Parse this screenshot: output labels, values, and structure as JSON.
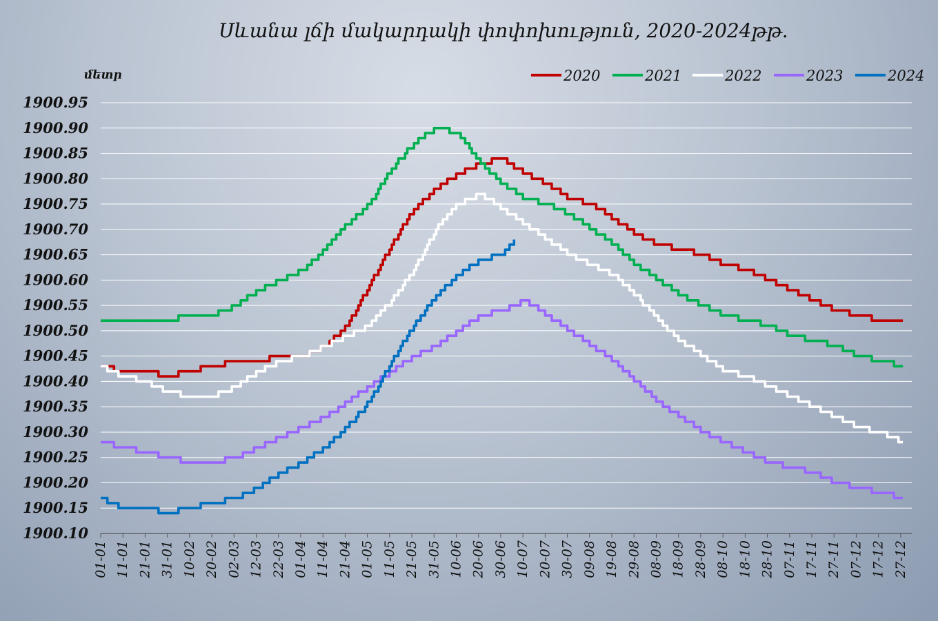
{
  "chart_data": {
    "type": "line",
    "title": "Սևանա լճի մակարդակի փոփոխություն, 2020-2024թթ.",
    "ylabel": "մետր",
    "ylim": [
      1900.1,
      1900.95
    ],
    "yticks": [
      "1900.95",
      "1900.90",
      "1900.85",
      "1900.80",
      "1900.75",
      "1900.70",
      "1900.65",
      "1900.60",
      "1900.55",
      "1900.50",
      "1900.45",
      "1900.40",
      "1900.35",
      "1900.30",
      "1900.25",
      "1900.20",
      "1900.15",
      "1900.10"
    ],
    "xticks": [
      "01-01",
      "11-01",
      "21-01",
      "31-01",
      "10-02",
      "20-02",
      "02-03",
      "12-03",
      "22-03",
      "01-04",
      "11-04",
      "21-04",
      "01-05",
      "11-05",
      "21-05",
      "31-05",
      "10-06",
      "20-06",
      "30-06",
      "10-07",
      "20-07",
      "30-07",
      "09-08",
      "19-08",
      "29-08",
      "08-09",
      "18-09",
      "28-09",
      "08-10",
      "18-10",
      "28-10",
      "07-11",
      "17-11",
      "27-11",
      "07-12",
      "17-12",
      "27-12"
    ],
    "grid": true,
    "legend_position": "top-right",
    "series": [
      {
        "name": "2020",
        "color": "#c00000",
        "x": [
          "01-01",
          "11-01",
          "21-01",
          "31-01",
          "10-02",
          "20-02",
          "02-03",
          "12-03",
          "22-03",
          "01-04",
          "11-04",
          "21-04",
          "01-05",
          "11-05",
          "21-05",
          "31-05",
          "10-06",
          "20-06",
          "30-06",
          "10-07",
          "20-07",
          "30-07",
          "09-08",
          "19-08",
          "29-08",
          "08-09",
          "18-09",
          "28-09",
          "08-10",
          "18-10",
          "28-10",
          "07-11",
          "17-11",
          "27-11",
          "07-12",
          "17-12",
          "27-12"
        ],
        "values": [
          1900.43,
          1900.42,
          1900.42,
          1900.41,
          1900.42,
          1900.43,
          1900.44,
          1900.44,
          1900.45,
          1900.45,
          1900.47,
          1900.51,
          1900.59,
          1900.67,
          1900.74,
          1900.78,
          1900.81,
          1900.83,
          1900.84,
          1900.81,
          1900.79,
          1900.76,
          1900.75,
          1900.72,
          1900.69,
          1900.67,
          1900.66,
          1900.65,
          1900.63,
          1900.62,
          1900.6,
          1900.58,
          1900.56,
          1900.54,
          1900.53,
          1900.52,
          1900.52
        ]
      },
      {
        "name": "2021",
        "color": "#00b050",
        "x": [
          "01-01",
          "11-01",
          "21-01",
          "31-01",
          "10-02",
          "20-02",
          "02-03",
          "12-03",
          "22-03",
          "01-04",
          "11-04",
          "21-04",
          "01-05",
          "11-05",
          "21-05",
          "31-05",
          "10-06",
          "20-06",
          "30-06",
          "10-07",
          "20-07",
          "30-07",
          "09-08",
          "19-08",
          "29-08",
          "08-09",
          "18-09",
          "28-09",
          "08-10",
          "18-10",
          "28-10",
          "07-11",
          "17-11",
          "27-11",
          "07-12",
          "17-12",
          "27-12"
        ],
        "values": [
          1900.52,
          1900.52,
          1900.52,
          1900.52,
          1900.53,
          1900.53,
          1900.55,
          1900.58,
          1900.6,
          1900.62,
          1900.66,
          1900.71,
          1900.75,
          1900.82,
          1900.87,
          1900.9,
          1900.89,
          1900.83,
          1900.79,
          1900.76,
          1900.75,
          1900.73,
          1900.7,
          1900.67,
          1900.63,
          1900.6,
          1900.57,
          1900.55,
          1900.53,
          1900.52,
          1900.51,
          1900.49,
          1900.48,
          1900.47,
          1900.45,
          1900.44,
          1900.43
        ]
      },
      {
        "name": "2022",
        "color": "#ffffff",
        "x": [
          "01-01",
          "11-01",
          "21-01",
          "31-01",
          "10-02",
          "20-02",
          "02-03",
          "12-03",
          "22-03",
          "01-04",
          "11-04",
          "21-04",
          "01-05",
          "11-05",
          "21-05",
          "31-05",
          "10-06",
          "20-06",
          "30-06",
          "10-07",
          "20-07",
          "30-07",
          "09-08",
          "19-08",
          "29-08",
          "08-09",
          "18-09",
          "28-09",
          "08-10",
          "18-10",
          "28-10",
          "07-11",
          "17-11",
          "27-11",
          "07-12",
          "17-12",
          "27-12"
        ],
        "values": [
          1900.43,
          1900.41,
          1900.4,
          1900.38,
          1900.37,
          1900.37,
          1900.39,
          1900.42,
          1900.44,
          1900.45,
          1900.47,
          1900.49,
          1900.51,
          1900.56,
          1900.62,
          1900.7,
          1900.75,
          1900.77,
          1900.74,
          1900.71,
          1900.68,
          1900.65,
          1900.63,
          1900.61,
          1900.57,
          1900.52,
          1900.48,
          1900.45,
          1900.42,
          1900.41,
          1900.39,
          1900.37,
          1900.35,
          1900.33,
          1900.31,
          1900.3,
          1900.28
        ]
      },
      {
        "name": "2023",
        "color": "#9966ff",
        "x": [
          "01-01",
          "11-01",
          "21-01",
          "31-01",
          "10-02",
          "20-02",
          "02-03",
          "12-03",
          "22-03",
          "01-04",
          "11-04",
          "21-04",
          "01-05",
          "11-05",
          "21-05",
          "31-05",
          "10-06",
          "20-06",
          "30-06",
          "10-07",
          "20-07",
          "30-07",
          "09-08",
          "19-08",
          "29-08",
          "08-09",
          "18-09",
          "28-09",
          "08-10",
          "18-10",
          "28-10",
          "07-11",
          "17-11",
          "27-11",
          "07-12",
          "17-12",
          "27-12"
        ],
        "values": [
          1900.28,
          1900.27,
          1900.26,
          1900.25,
          1900.24,
          1900.24,
          1900.25,
          1900.27,
          1900.29,
          1900.31,
          1900.33,
          1900.36,
          1900.39,
          1900.42,
          1900.45,
          1900.47,
          1900.5,
          1900.53,
          1900.54,
          1900.56,
          1900.53,
          1900.5,
          1900.47,
          1900.44,
          1900.4,
          1900.36,
          1900.33,
          1900.3,
          1900.28,
          1900.26,
          1900.24,
          1900.23,
          1900.22,
          1900.2,
          1900.19,
          1900.18,
          1900.17
        ]
      },
      {
        "name": "2024",
        "color": "#0070c0",
        "x": [
          "01-01",
          "11-01",
          "21-01",
          "31-01",
          "10-02",
          "20-02",
          "02-03",
          "12-03",
          "22-03",
          "01-04",
          "11-04",
          "21-04",
          "01-05",
          "11-05",
          "21-05",
          "31-05",
          "10-06",
          "20-06",
          "30-06",
          "05-07"
        ],
        "values": [
          1900.17,
          1900.15,
          1900.15,
          1900.14,
          1900.15,
          1900.16,
          1900.17,
          1900.19,
          1900.22,
          1900.24,
          1900.27,
          1900.31,
          1900.36,
          1900.44,
          1900.51,
          1900.57,
          1900.61,
          1900.64,
          1900.65,
          1900.68
        ]
      }
    ]
  }
}
